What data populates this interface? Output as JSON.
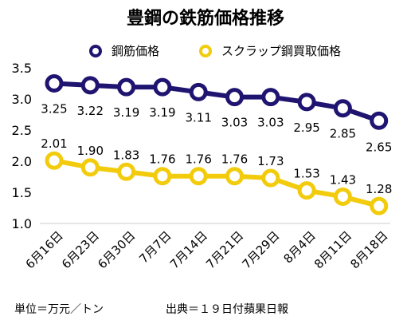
{
  "chart_data": {
    "type": "line",
    "title": "豊鋼の鉄筋価格推移",
    "categories": [
      "6月16日",
      "6月23日",
      "6月30日",
      "7月7日",
      "7月14日",
      "7月21日",
      "7月29日",
      "8月4日",
      "8月11日",
      "8月18日"
    ],
    "series": [
      {
        "name": "鋼筋価格",
        "color": "#1f1470",
        "values": [
          3.25,
          3.22,
          3.19,
          3.19,
          3.11,
          3.03,
          3.03,
          2.95,
          2.85,
          2.65
        ],
        "labels": [
          "3.25",
          "3.22",
          "3.19",
          "3.19",
          "3.11",
          "3.03",
          "3.03",
          "2.95",
          "2.85",
          "2.65"
        ]
      },
      {
        "name": "スクラップ鋼買取価格",
        "color": "#f2cc0c",
        "values": [
          2.01,
          1.9,
          1.83,
          1.76,
          1.76,
          1.76,
          1.73,
          1.53,
          1.43,
          1.28
        ],
        "labels": [
          "2.01",
          "1.90",
          "1.83",
          "1.76",
          "1.76",
          "1.76",
          "1.73",
          "1.53",
          "1.43",
          "1.28"
        ]
      }
    ],
    "y_ticks": [
      "1.0",
      "1.5",
      "2.0",
      "2.5",
      "3.0",
      "3.5"
    ],
    "ylim": [
      1.0,
      3.5
    ],
    "grid": false,
    "legend_position": "top"
  },
  "footer": {
    "unit": "単位＝万元／トン",
    "source": "出典＝１９日付蘋果日報"
  }
}
